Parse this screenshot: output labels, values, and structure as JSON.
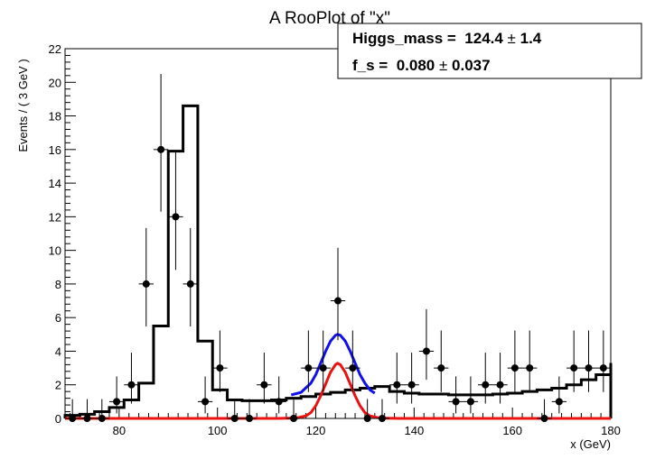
{
  "chart_data": {
    "type": "histogram_fit",
    "title": "A RooPlot of \"x\"",
    "xlabel": "x (GeV)",
    "ylabel": "Events / ( 3 GeV )",
    "xlim": [
      69,
      180
    ],
    "ylim": [
      0,
      22
    ],
    "x_ticks": [
      80,
      100,
      120,
      140,
      160,
      180
    ],
    "y_ticks": [
      0,
      2,
      4,
      6,
      8,
      10,
      12,
      14,
      16,
      18,
      20,
      22
    ],
    "bin_width": 3,
    "data_points": {
      "x": [
        70.5,
        73.5,
        76.5,
        79.5,
        82.5,
        85.5,
        88.5,
        91.5,
        94.5,
        97.5,
        100.5,
        103.5,
        106.5,
        109.5,
        112.5,
        115.5,
        118.5,
        121.5,
        124.5,
        127.5,
        130.5,
        133.5,
        136.5,
        139.5,
        142.5,
        145.5,
        148.5,
        151.5,
        154.5,
        157.5,
        160.5,
        163.5,
        166.5,
        169.5,
        172.5,
        175.5,
        178.5
      ],
      "y": [
        0,
        0,
        0,
        1,
        2,
        8,
        16,
        12,
        8,
        1,
        3,
        0,
        0,
        2,
        1,
        0,
        3,
        3,
        7,
        3,
        0,
        0,
        2,
        2,
        4,
        3,
        1,
        1,
        2,
        2,
        3,
        3,
        0,
        1,
        3,
        3,
        3
      ]
    },
    "total_model": {
      "x": [
        69,
        72,
        75,
        78,
        81,
        84,
        87,
        90,
        93,
        96,
        99,
        102,
        105,
        108,
        111,
        114,
        117,
        120,
        123,
        126,
        129,
        132,
        135,
        138,
        141,
        144,
        147,
        150,
        153,
        156,
        159,
        162,
        165,
        168,
        171,
        174,
        177,
        180
      ],
      "y": [
        0.18,
        0.25,
        0.4,
        0.65,
        1.1,
        2.1,
        5.5,
        15.9,
        18.6,
        4.6,
        1.7,
        1.1,
        1.05,
        1.05,
        1.1,
        1.2,
        1.3,
        1.45,
        1.55,
        1.7,
        1.8,
        1.9,
        1.6,
        1.5,
        1.45,
        1.45,
        1.4,
        1.4,
        1.4,
        1.45,
        1.5,
        1.6,
        1.7,
        1.8,
        2.0,
        2.3,
        2.6,
        3.3
      ]
    },
    "fit_curve_sb": {
      "x": [
        115,
        117,
        119,
        120,
        121,
        122,
        123,
        124,
        124.4,
        125,
        126,
        127,
        128,
        129,
        130,
        131,
        132
      ],
      "y": [
        1.4,
        1.55,
        2.1,
        2.6,
        3.3,
        4.0,
        4.6,
        4.95,
        5.0,
        4.95,
        4.6,
        4.0,
        3.3,
        2.6,
        2.1,
        1.7,
        1.5
      ]
    },
    "signal_curve": {
      "x": [
        69,
        112,
        116,
        118,
        119,
        120,
        121,
        122,
        123,
        124,
        124.4,
        125,
        126,
        127,
        128,
        129,
        130,
        131,
        133,
        137,
        180
      ],
      "y": [
        0,
        0,
        0.02,
        0.15,
        0.35,
        0.75,
        1.35,
        2.05,
        2.75,
        3.2,
        3.28,
        3.2,
        2.75,
        2.05,
        1.35,
        0.75,
        0.35,
        0.15,
        0.02,
        0,
        0
      ]
    },
    "fit_results": [
      {
        "name": "Higgs_mass",
        "value": "124.4",
        "error": "1.4"
      },
      {
        "name": "f_s",
        "value": "0.080",
        "error": "0.037"
      }
    ],
    "colors": {
      "data": "#000000",
      "total": "#000000",
      "sb_fit": "#1010ee",
      "signal": "#ee1010"
    }
  }
}
